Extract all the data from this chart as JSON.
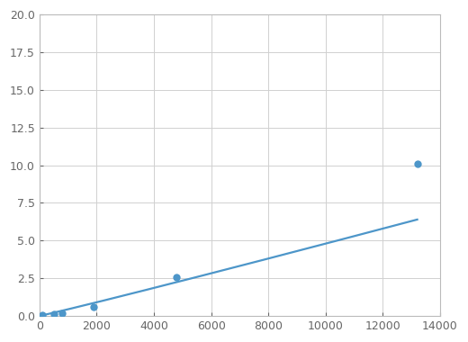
{
  "x": [
    100,
    500,
    800,
    1900,
    4800,
    13200
  ],
  "y": [
    0.08,
    0.15,
    0.2,
    0.62,
    2.55,
    10.1
  ],
  "line_color": "#4d96c9",
  "marker_color": "#4d96c9",
  "marker_size": 6,
  "linewidth": 1.6,
  "xlim": [
    0,
    14000
  ],
  "ylim": [
    0,
    20
  ],
  "xticks": [
    0,
    2000,
    4000,
    6000,
    8000,
    10000,
    12000,
    14000
  ],
  "yticks": [
    0.0,
    2.5,
    5.0,
    7.5,
    10.0,
    12.5,
    15.0,
    17.5,
    20.0
  ],
  "grid_color": "#d0d0d0",
  "background_color": "#ffffff",
  "spine_color": "#bbbbbb",
  "tick_color": "#666666",
  "tick_labelsize": 9
}
